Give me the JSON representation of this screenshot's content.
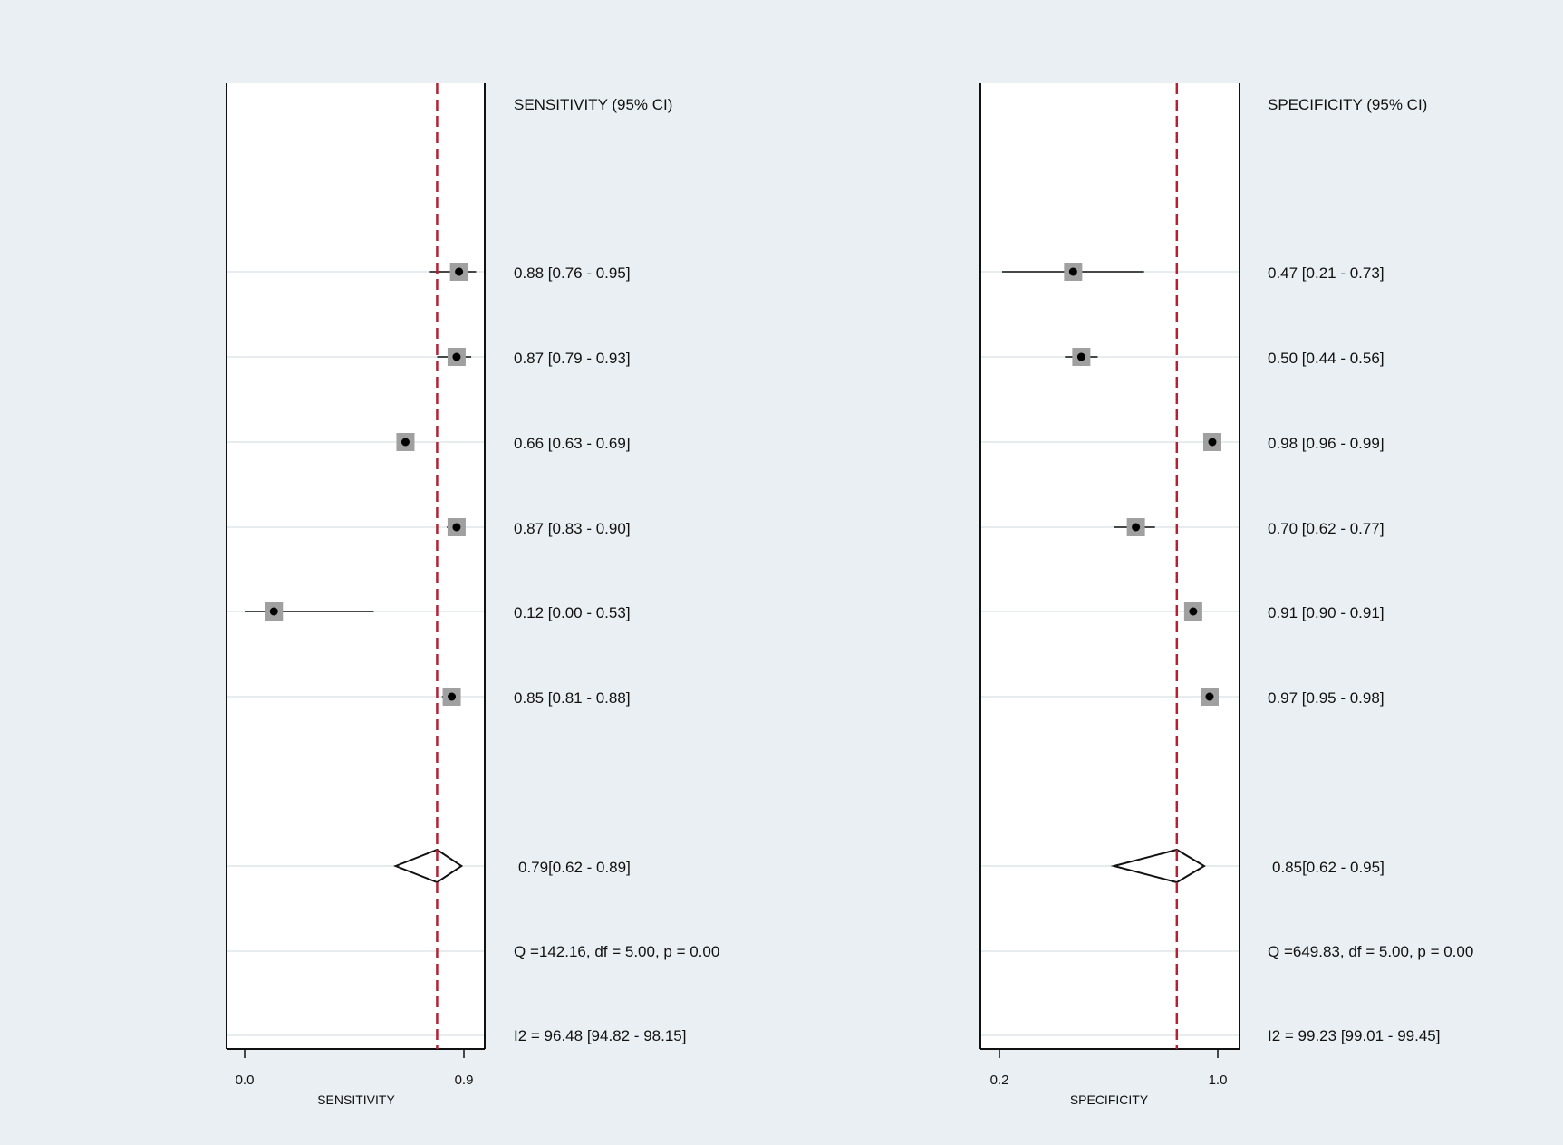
{
  "chart_data": [
    {
      "type": "forest",
      "column_header": "SENSITIVITY (95% CI)",
      "xlabel": "SENSITIVITY",
      "xlim": [
        0.0,
        0.9
      ],
      "xticks": [
        "0.0",
        "0.9"
      ],
      "reference_line": 0.79,
      "reference_line_color": "#b22234",
      "studies": [
        {
          "estimate": 0.88,
          "lower": 0.76,
          "upper": 0.95,
          "label": "0.88 [0.76 - 0.95]"
        },
        {
          "estimate": 0.87,
          "lower": 0.79,
          "upper": 0.93,
          "label": "0.87 [0.79 - 0.93]"
        },
        {
          "estimate": 0.66,
          "lower": 0.63,
          "upper": 0.69,
          "label": "0.66 [0.63 - 0.69]"
        },
        {
          "estimate": 0.87,
          "lower": 0.83,
          "upper": 0.9,
          "label": "0.87 [0.83 - 0.90]"
        },
        {
          "estimate": 0.12,
          "lower": 0.0,
          "upper": 0.53,
          "label": "0.12 [0.00 - 0.53]"
        },
        {
          "estimate": 0.85,
          "lower": 0.81,
          "upper": 0.88,
          "label": "0.85 [0.81 - 0.88]"
        }
      ],
      "pooled": {
        "estimate": 0.79,
        "lower": 0.62,
        "upper": 0.89,
        "label": "0.79[0.62 - 0.89]"
      },
      "heterogeneity_q": "Q =142.16, df = 5.00, p =  0.00",
      "heterogeneity_i2": "I2 = 96.48 [94.82 - 98.15]"
    },
    {
      "type": "forest",
      "column_header": "SPECIFICITY (95% CI)",
      "xlabel": "SPECIFICITY",
      "xlim": [
        0.2,
        1.0
      ],
      "xticks": [
        "0.2",
        "1.0"
      ],
      "reference_line": 0.85,
      "reference_line_color": "#b22234",
      "studies": [
        {
          "estimate": 0.47,
          "lower": 0.21,
          "upper": 0.73,
          "label": "0.47 [0.21 - 0.73]"
        },
        {
          "estimate": 0.5,
          "lower": 0.44,
          "upper": 0.56,
          "label": "0.50 [0.44 - 0.56]"
        },
        {
          "estimate": 0.98,
          "lower": 0.96,
          "upper": 0.99,
          "label": "0.98 [0.96 - 0.99]"
        },
        {
          "estimate": 0.7,
          "lower": 0.62,
          "upper": 0.77,
          "label": "0.70 [0.62 - 0.77]"
        },
        {
          "estimate": 0.91,
          "lower": 0.9,
          "upper": 0.91,
          "label": "0.91 [0.90 - 0.91]"
        },
        {
          "estimate": 0.97,
          "lower": 0.95,
          "upper": 0.98,
          "label": "0.97 [0.95 - 0.98]"
        }
      ],
      "pooled": {
        "estimate": 0.85,
        "lower": 0.62,
        "upper": 0.95,
        "label": "0.85[0.62 - 0.95]"
      },
      "heterogeneity_q": "Q =649.83, df = 5.00, p =  0.00",
      "heterogeneity_i2": "I2 = 99.23 [99.01 - 99.45]"
    }
  ]
}
